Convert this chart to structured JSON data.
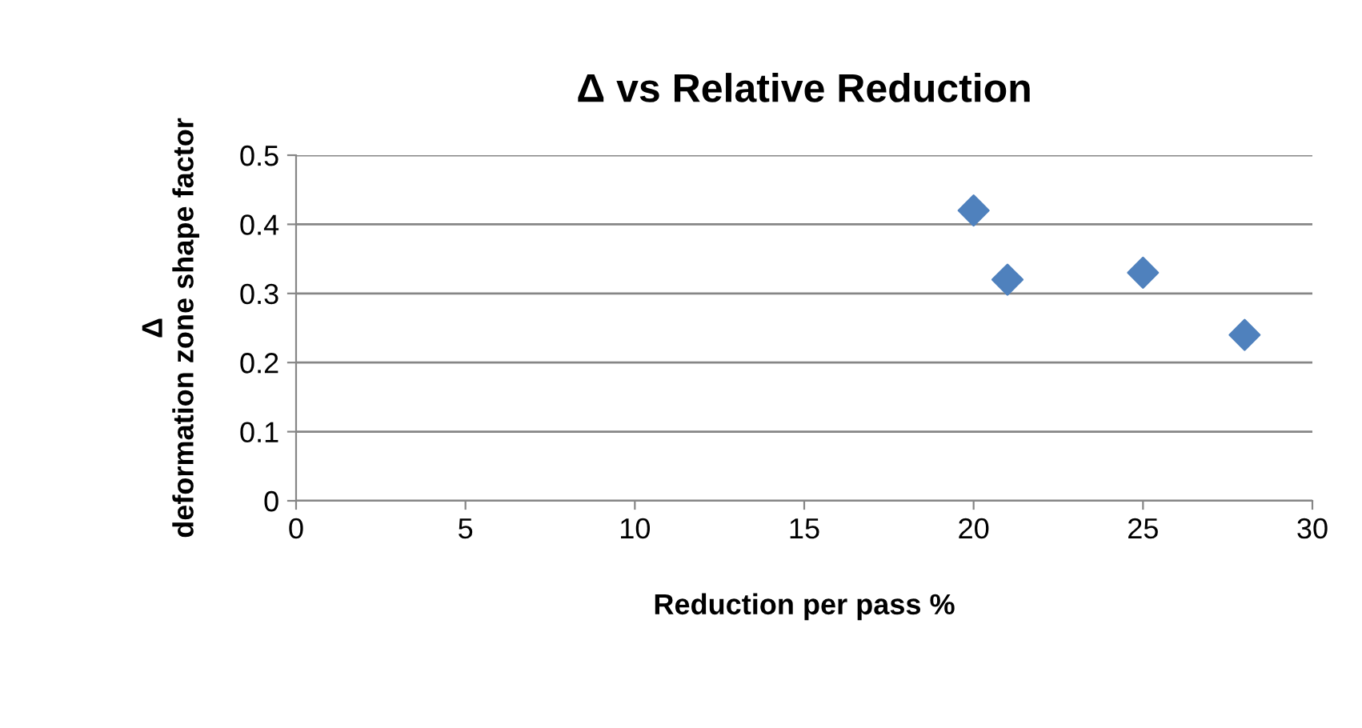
{
  "chart_data": {
    "type": "scatter",
    "title": "Δ vs Relative Reduction",
    "xlabel": "Reduction per pass %",
    "ylabel": "Δ\ndeformation zone shape factor",
    "x": [
      20,
      21,
      25,
      28
    ],
    "series": [
      {
        "color": "#4f81bd",
        "values": [
          0.42,
          0.32,
          0.33,
          0.24
        ]
      }
    ],
    "xlim": [
      0,
      30
    ],
    "xticks": [
      0,
      5,
      10,
      15,
      20,
      25,
      30
    ],
    "ylim": [
      0,
      0.5
    ],
    "yticks": [
      0,
      0.1,
      0.2,
      0.3,
      0.4,
      0.5
    ],
    "grid": "y",
    "marker": "diamond",
    "legend": false
  }
}
